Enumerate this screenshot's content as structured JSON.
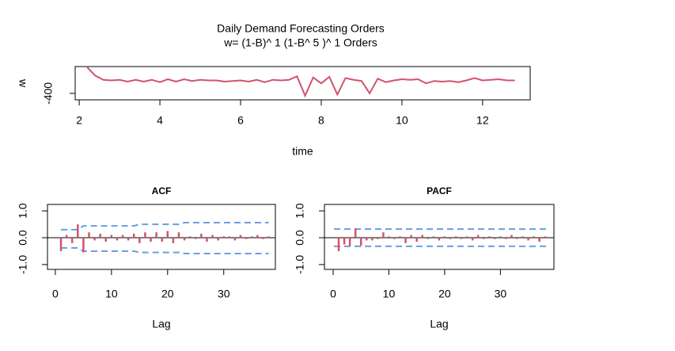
{
  "chart_data": [
    {
      "type": "line",
      "title": "Daily Demand Forecasting Orders",
      "subtitle": "w= (1-B)^ 1 (1-B^ 5 )^ 1 Orders",
      "xlabel": "time",
      "ylabel": "w",
      "color": "#d2536b",
      "x": [
        2.2,
        2.4,
        2.6,
        2.8,
        3.0,
        3.2,
        3.4,
        3.6,
        3.8,
        4.0,
        4.2,
        4.4,
        4.6,
        4.8,
        5.0,
        5.2,
        5.4,
        5.6,
        5.8,
        6.0,
        6.2,
        6.4,
        6.6,
        6.8,
        7.0,
        7.2,
        7.4,
        7.6,
        7.8,
        8.0,
        8.2,
        8.4,
        8.6,
        8.8,
        9.0,
        9.2,
        9.4,
        9.6,
        9.8,
        10.0,
        10.2,
        10.4,
        10.6,
        10.8,
        11.0,
        11.2,
        11.4,
        11.6,
        11.8,
        12.0,
        12.2,
        12.4,
        12.6,
        12.8
      ],
      "values": [
        480,
        200,
        60,
        40,
        60,
        0,
        60,
        0,
        60,
        -20,
        80,
        0,
        80,
        20,
        60,
        40,
        40,
        0,
        20,
        40,
        0,
        60,
        -20,
        60,
        40,
        60,
        180,
        -480,
        140,
        -60,
        160,
        -440,
        120,
        60,
        20,
        -400,
        100,
        -20,
        40,
        80,
        60,
        80,
        -60,
        20,
        0,
        20,
        -20,
        40,
        120,
        40,
        60,
        80,
        40,
        40
      ],
      "xlim": [
        1.9,
        13.18
      ],
      "xticks": [
        2,
        4,
        6,
        8,
        10,
        12
      ],
      "ylim": [
        -620,
        510
      ],
      "yticks": [
        -400
      ]
    },
    {
      "type": "stem",
      "title": "ACF",
      "xlabel": "Lag",
      "color": "#d2536b",
      "band_color": "#6a9fe0",
      "x": [
        1,
        2,
        3,
        4,
        5,
        6,
        7,
        8,
        9,
        10,
        11,
        12,
        13,
        14,
        15,
        16,
        17,
        18,
        19,
        20,
        21,
        22,
        23,
        24,
        25,
        26,
        27,
        28,
        29,
        30,
        31,
        32,
        33,
        34,
        35,
        36,
        37,
        38
      ],
      "values": [
        -0.5,
        0.1,
        -0.2,
        0.5,
        -0.55,
        0.2,
        -0.1,
        0.15,
        -0.15,
        0.1,
        -0.1,
        0.1,
        -0.1,
        0.15,
        -0.2,
        0.2,
        -0.15,
        0.2,
        -0.15,
        0.25,
        -0.2,
        0.2,
        -0.1,
        0.05,
        -0.05,
        0.15,
        -0.15,
        0.1,
        -0.1,
        0.05,
        0.05,
        -0.1,
        0.1,
        -0.05,
        0.05,
        0.1,
        -0.05,
        0.05
      ],
      "ci_upper": [
        0.3,
        0.3,
        0.3,
        0.3,
        0.44,
        0.44,
        0.44,
        0.44,
        0.44,
        0.44,
        0.44,
        0.44,
        0.44,
        0.44,
        0.5,
        0.5,
        0.5,
        0.5,
        0.5,
        0.5,
        0.5,
        0.5,
        0.56,
        0.56,
        0.56,
        0.56,
        0.56,
        0.56,
        0.56,
        0.56,
        0.56,
        0.56,
        0.56,
        0.56,
        0.56,
        0.56,
        0.56,
        0.56
      ],
      "ci_lower": [
        -0.38,
        -0.38,
        -0.38,
        -0.38,
        -0.5,
        -0.5,
        -0.5,
        -0.5,
        -0.5,
        -0.5,
        -0.5,
        -0.5,
        -0.5,
        -0.5,
        -0.55,
        -0.55,
        -0.55,
        -0.55,
        -0.55,
        -0.55,
        -0.55,
        -0.55,
        -0.59,
        -0.59,
        -0.59,
        -0.59,
        -0.59,
        -0.59,
        -0.59,
        -0.59,
        -0.59,
        -0.59,
        -0.59,
        -0.59,
        -0.59,
        -0.59,
        -0.59,
        -0.59
      ],
      "xlim": [
        -1.4,
        39.2
      ],
      "xticks": [
        0,
        10,
        20,
        30
      ],
      "ylim": [
        -1.18,
        1.24
      ],
      "yticks": [
        {
          "value": -1,
          "label": "-1.0"
        },
        {
          "value": 0,
          "label": "0.0"
        },
        {
          "value": 1,
          "label": "1.0"
        }
      ]
    },
    {
      "type": "stem",
      "title": "PACF",
      "xlabel": "Lag",
      "color": "#d2536b",
      "band_color": "#6a9fe0",
      "x": [
        1,
        2,
        3,
        4,
        5,
        6,
        7,
        8,
        9,
        10,
        11,
        12,
        13,
        14,
        15,
        16,
        17,
        18,
        19,
        20,
        21,
        22,
        23,
        24,
        25,
        26,
        27,
        28,
        29,
        30,
        31,
        32,
        33,
        34,
        35,
        36,
        37,
        38
      ],
      "values": [
        -0.5,
        -0.25,
        -0.3,
        0.35,
        -0.3,
        -0.1,
        -0.1,
        -0.05,
        0.2,
        0.05,
        -0.05,
        0.05,
        -0.2,
        0.1,
        -0.15,
        0.1,
        -0.05,
        0.05,
        -0.1,
        0.05,
        -0.05,
        0.05,
        -0.05,
        0.05,
        -0.1,
        0.1,
        -0.05,
        0.05,
        -0.05,
        0.05,
        -0.05,
        0.1,
        -0.05,
        0.05,
        -0.1,
        0.05,
        -0.15,
        0.05
      ],
      "ci_upper": 0.32,
      "ci_lower": -0.32,
      "xlim": [
        -1.56,
        39.6
      ],
      "xticks": [
        0,
        10,
        20,
        30
      ],
      "ylim": [
        -1.18,
        1.24
      ],
      "yticks": [
        {
          "value": -1,
          "label": "-1.0"
        },
        {
          "value": 0,
          "label": "0.0"
        },
        {
          "value": 1,
          "label": "1.0"
        }
      ]
    }
  ]
}
